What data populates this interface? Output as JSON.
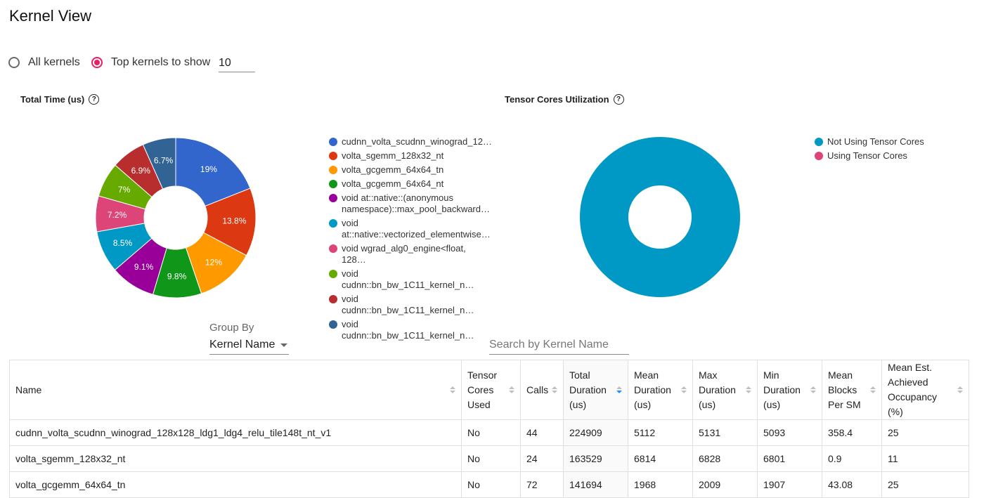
{
  "title": "Kernel View",
  "radio": {
    "all_label": "All kernels",
    "top_label": "Top kernels to show",
    "top_value": "10",
    "selected": "top"
  },
  "total_time_chart": {
    "title": "Total Time (us)",
    "help": "?",
    "chart_data": {
      "type": "pie",
      "categories": [
        "cudnn_volta_scudnn_winograd_12…",
        "volta_sgemm_128x32_nt",
        "volta_gcgemm_64x64_tn",
        "volta_gcgemm_64x64_nt",
        "void at::native::(anonymous namespace)::max_pool_backward…",
        "void at::native::vectorized_elementwise…",
        "void wgrad_alg0_engine<float, 128…",
        "void cudnn::bn_bw_1C11_kernel_n…",
        "void cudnn::bn_bw_1C11_kernel_n…",
        "void cudnn::bn_bw_1C11_kernel_n…"
      ],
      "values": [
        19,
        13.8,
        12,
        9.8,
        9.1,
        8.5,
        7.2,
        7,
        6.9,
        6.7
      ],
      "labels": [
        "19%",
        "13.8%",
        "12%",
        "9.8%",
        "9.1%",
        "8.5%",
        "7.2%",
        "7%",
        "6.9%",
        "6.7%"
      ],
      "colors": [
        "#3366cc",
        "#dc3912",
        "#ff9900",
        "#109618",
        "#990099",
        "#0099c6",
        "#dd4477",
        "#66aa00",
        "#b82e2e",
        "#316395"
      ],
      "legend": "right"
    }
  },
  "tensor_chart": {
    "title": "Tensor Cores Utilization",
    "help": "?",
    "chart_data": {
      "type": "pie",
      "categories": [
        "Not Using Tensor Cores",
        "Using Tensor Cores"
      ],
      "values": [
        100,
        0
      ],
      "colors": [
        "#0099c6",
        "#dd4477"
      ],
      "legend": "right"
    }
  },
  "groupby": {
    "label": "Group By",
    "value": "Kernel Name"
  },
  "search": {
    "placeholder": "Search by Kernel Name"
  },
  "table": {
    "columns": [
      "Name",
      "Tensor Cores Used",
      "Calls",
      "Total Duration (us)",
      "Mean Duration (us)",
      "Max Duration (us)",
      "Min Duration (us)",
      "Mean Blocks Per SM",
      "Mean Est. Achieved Occupancy (%)"
    ],
    "rows": [
      [
        "cudnn_volta_scudnn_winograd_128x128_ldg1_ldg4_relu_tile148t_nt_v1",
        "No",
        "44",
        "224909",
        "5112",
        "5131",
        "5093",
        "358.4",
        "25"
      ],
      [
        "volta_sgemm_128x32_nt",
        "No",
        "24",
        "163529",
        "6814",
        "6828",
        "6801",
        "0.9",
        "11"
      ],
      [
        "volta_gcgemm_64x64_tn",
        "No",
        "72",
        "141694",
        "1968",
        "2009",
        "1907",
        "43.08",
        "25"
      ]
    ]
  }
}
